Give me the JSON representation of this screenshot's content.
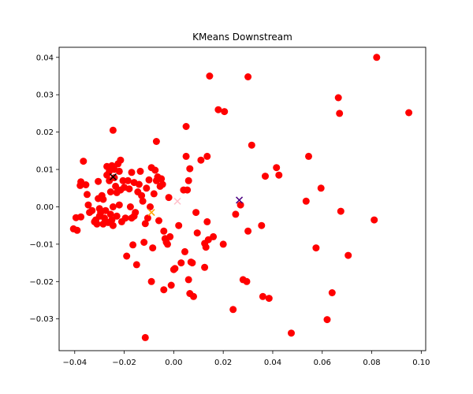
{
  "chart_data": {
    "type": "scatter",
    "title": "KMeans Downstream",
    "xlabel": "",
    "ylabel": "",
    "xlim": [
      -0.0463,
      0.1018
    ],
    "ylim": [
      -0.0385,
      0.0427
    ],
    "grid": false,
    "x_ticks": [
      -0.04,
      -0.02,
      0.0,
      0.02,
      0.04,
      0.06,
      0.08,
      0.1
    ],
    "x_tick_labels": [
      "−0.04",
      "−0.02",
      "0.00",
      "0.02",
      "0.04",
      "0.06",
      "0.08",
      "0.10"
    ],
    "y_ticks": [
      -0.03,
      -0.02,
      -0.01,
      0.0,
      0.01,
      0.02,
      0.03,
      0.04
    ],
    "y_tick_labels": [
      "−0.03",
      "−0.02",
      "−0.01",
      "0.00",
      "0.01",
      "0.02",
      "0.03",
      "0.04"
    ],
    "series": [
      {
        "marker": "circle",
        "color": "#ff0000",
        "points": [
          [
            -0.0405,
            -0.0059
          ],
          [
            -0.039,
            -0.0063
          ],
          [
            -0.0395,
            -0.0029
          ],
          [
            -0.0375,
            -0.0027
          ],
          [
            -0.0365,
            0.0122
          ],
          [
            -0.0375,
            0.0067
          ],
          [
            -0.0378,
            0.0057
          ],
          [
            -0.0355,
            0.0059
          ],
          [
            -0.035,
            0.0033
          ],
          [
            -0.0345,
            0.0005
          ],
          [
            -0.034,
            -0.0015
          ],
          [
            -0.033,
            -0.001
          ],
          [
            -0.032,
            -0.004
          ],
          [
            -0.0315,
            -0.0035
          ],
          [
            -0.031,
            -0.0046
          ],
          [
            -0.0305,
            0.0068
          ],
          [
            -0.0305,
            0.0022
          ],
          [
            -0.03,
            -0.0005
          ],
          [
            -0.03,
            -0.0025
          ],
          [
            -0.0295,
            -0.0015
          ],
          [
            -0.029,
            0.003
          ],
          [
            -0.0285,
            0.002
          ],
          [
            -0.0285,
            -0.0046
          ],
          [
            -0.028,
            -0.003
          ],
          [
            -0.0275,
            -0.001
          ],
          [
            -0.027,
            0.0085
          ],
          [
            -0.027,
            0.0108
          ],
          [
            -0.0265,
            -0.0042
          ],
          [
            -0.026,
            0.0095
          ],
          [
            -0.026,
            0.007
          ],
          [
            -0.0255,
            0.004
          ],
          [
            -0.0255,
            -0.002
          ],
          [
            -0.025,
            0.011
          ],
          [
            -0.025,
            -0.0035
          ],
          [
            -0.0245,
            0.0205
          ],
          [
            -0.0245,
            -0.005
          ],
          [
            -0.0245,
            0.0
          ],
          [
            -0.024,
            0.01
          ],
          [
            -0.024,
            0.0078
          ],
          [
            -0.0235,
            0.0055
          ],
          [
            -0.023,
            0.0038
          ],
          [
            -0.023,
            -0.0025
          ],
          [
            -0.0225,
            0.0115
          ],
          [
            -0.022,
            0.0095
          ],
          [
            -0.022,
            0.0005
          ],
          [
            -0.0215,
            0.0125
          ],
          [
            -0.0215,
            0.0045
          ],
          [
            -0.021,
            -0.004
          ],
          [
            -0.0205,
            0.007
          ],
          [
            -0.02,
            0.0052
          ],
          [
            -0.0195,
            -0.003
          ],
          [
            -0.019,
            -0.0132
          ],
          [
            -0.0185,
            0.007
          ],
          [
            -0.018,
            0.0048
          ],
          [
            -0.0175,
            0.0
          ],
          [
            -0.017,
            0.0092
          ],
          [
            -0.017,
            -0.003
          ],
          [
            -0.0165,
            -0.0102
          ],
          [
            -0.016,
            0.0065
          ],
          [
            -0.016,
            -0.0025
          ],
          [
            -0.0155,
            -0.0015
          ],
          [
            -0.015,
            -0.0155
          ],
          [
            -0.0145,
            0.004
          ],
          [
            -0.014,
            0.006
          ],
          [
            -0.0135,
            0.0095
          ],
          [
            -0.013,
            0.003
          ],
          [
            -0.0125,
            0.0015
          ],
          [
            -0.012,
            -0.0095
          ],
          [
            -0.0115,
            -0.035
          ],
          [
            -0.0115,
            -0.0045
          ],
          [
            -0.011,
            0.005
          ],
          [
            -0.0105,
            -0.003
          ],
          [
            -0.01,
            0.0072
          ],
          [
            -0.0095,
            0.0
          ],
          [
            -0.009,
            -0.02
          ],
          [
            -0.009,
            0.0105
          ],
          [
            -0.0085,
            -0.011
          ],
          [
            -0.008,
            0.0035
          ],
          [
            -0.0075,
            0.0098
          ],
          [
            -0.007,
            0.0175
          ],
          [
            -0.007,
            0.007
          ],
          [
            -0.0065,
            0.008
          ],
          [
            -0.006,
            -0.0037
          ],
          [
            -0.0055,
            0.0055
          ],
          [
            -0.005,
            0.0075
          ],
          [
            -0.0045,
            0.006
          ],
          [
            -0.004,
            -0.0222
          ],
          [
            -0.004,
            -0.0065
          ],
          [
            -0.0035,
            -0.0085
          ],
          [
            -0.003,
            -0.0095
          ],
          [
            -0.0025,
            -0.01
          ],
          [
            -0.002,
            0.0025
          ],
          [
            -0.0015,
            -0.008
          ],
          [
            -0.001,
            -0.021
          ],
          [
            0.0,
            -0.0168
          ],
          [
            0.0005,
            -0.0165
          ],
          [
            0.002,
            -0.005
          ],
          [
            0.003,
            -0.015
          ],
          [
            0.004,
            0.0045
          ],
          [
            0.0045,
            -0.012
          ],
          [
            0.005,
            0.0135
          ],
          [
            0.005,
            0.0215
          ],
          [
            0.0055,
            0.0045
          ],
          [
            0.006,
            0.007
          ],
          [
            0.006,
            -0.0195
          ],
          [
            0.0065,
            -0.0232
          ],
          [
            0.0065,
            0.0102
          ],
          [
            0.007,
            -0.0148
          ],
          [
            0.0075,
            -0.015
          ],
          [
            0.008,
            -0.024
          ],
          [
            0.009,
            -0.0015
          ],
          [
            0.0095,
            -0.007
          ],
          [
            0.011,
            0.0125
          ],
          [
            0.0125,
            -0.0162
          ],
          [
            0.0125,
            -0.0098
          ],
          [
            0.013,
            -0.0108
          ],
          [
            0.0135,
            -0.004
          ],
          [
            0.014,
            -0.0088
          ],
          [
            0.0135,
            0.0135
          ],
          [
            0.0145,
            0.035
          ],
          [
            0.016,
            -0.008
          ],
          [
            0.018,
            0.026
          ],
          [
            0.02,
            -0.01
          ],
          [
            0.0205,
            0.0255
          ],
          [
            0.024,
            -0.0275
          ],
          [
            0.025,
            -0.002
          ],
          [
            0.027,
            0.0005
          ],
          [
            0.028,
            -0.0195
          ],
          [
            0.0295,
            -0.02
          ],
          [
            0.03,
            0.0348
          ],
          [
            0.03,
            -0.0065
          ],
          [
            0.0315,
            0.0165
          ],
          [
            0.0355,
            -0.005
          ],
          [
            0.036,
            -0.024
          ],
          [
            0.037,
            0.0082
          ],
          [
            0.0385,
            -0.0245
          ],
          [
            0.0415,
            0.0105
          ],
          [
            0.0425,
            0.0085
          ],
          [
            0.0475,
            -0.0338
          ],
          [
            0.0535,
            0.0015
          ],
          [
            0.0545,
            0.0135
          ],
          [
            0.0575,
            -0.011
          ],
          [
            0.0595,
            0.005
          ],
          [
            0.062,
            -0.0302
          ],
          [
            0.064,
            -0.023
          ],
          [
            0.0665,
            0.0292
          ],
          [
            0.067,
            0.025
          ],
          [
            0.0675,
            -0.0012
          ],
          [
            0.0705,
            -0.013
          ],
          [
            0.081,
            -0.0035
          ],
          [
            0.082,
            0.04
          ],
          [
            0.095,
            0.0252
          ]
        ]
      }
    ],
    "centroids": [
      {
        "x": -0.0245,
        "y": 0.008,
        "color": "#000000"
      },
      {
        "x": -0.009,
        "y": -0.0015,
        "color": "#ffa500"
      },
      {
        "x": 0.0015,
        "y": 0.0015,
        "color": "#ffc0cb"
      },
      {
        "x": 0.0265,
        "y": 0.0018,
        "color": "#4b0082"
      }
    ]
  }
}
